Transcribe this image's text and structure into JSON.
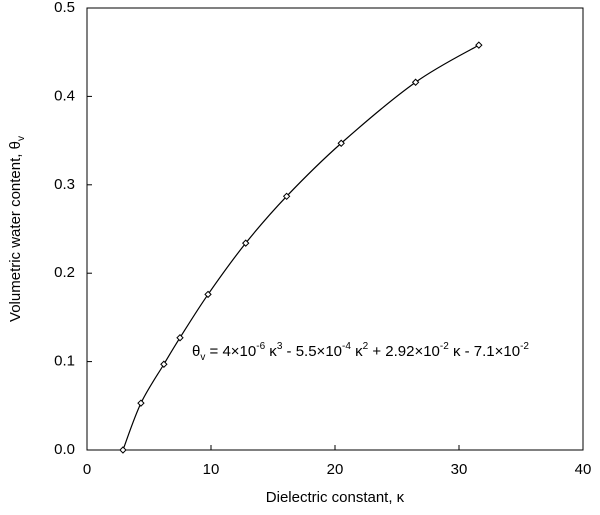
{
  "chart_data": {
    "type": "scatter",
    "x_label": "Dielectric constant, κ",
    "y_label": [
      {
        "text": "Volumetric water content, θ"
      },
      {
        "text": "v",
        "shift": "sub"
      }
    ],
    "annotation": [
      {
        "text": "θ"
      },
      {
        "text": "v",
        "shift": "sub"
      },
      {
        "text": " = 4×10"
      },
      {
        "text": "-6",
        "shift": "super"
      },
      {
        "text": " κ"
      },
      {
        "text": "3",
        "shift": "super"
      },
      {
        "text": " - 5.5×10"
      },
      {
        "text": "-4",
        "shift": "super"
      },
      {
        "text": " κ"
      },
      {
        "text": "2",
        "shift": "super"
      },
      {
        "text": " + 2.92×10"
      },
      {
        "text": "-2",
        "shift": "super"
      },
      {
        "text": " κ - 7.1×10"
      },
      {
        "text": "-2",
        "shift": "super"
      }
    ],
    "x": [
      2.9,
      4.35,
      6.2,
      7.5,
      9.76,
      12.8,
      16.1,
      20.5,
      26.5,
      31.6
    ],
    "values": [
      0.0,
      0.053,
      0.097,
      0.127,
      0.176,
      0.234,
      0.287,
      0.347,
      0.416,
      0.458
    ],
    "marker": "diamond",
    "color": "#000000",
    "fit_line": true,
    "xlim": [
      0,
      40
    ],
    "xticks": [
      0,
      10,
      20,
      30,
      40
    ],
    "ylim": [
      0,
      0.5
    ],
    "yticks": [
      {
        "value": 0,
        "label": "0.0"
      },
      0.1,
      0.2,
      0.3,
      0.4,
      0.5
    ],
    "grid": false
  }
}
